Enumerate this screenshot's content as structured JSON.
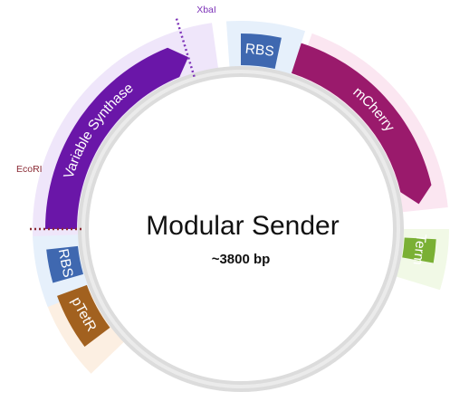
{
  "plasmid": {
    "name": "Modular Sender",
    "size": "~3800 bp"
  },
  "colors": {
    "backbone": "#dcdcdc",
    "backbone_inner": "#ebebeb"
  },
  "features": [
    {
      "id": "variable-synthase",
      "label": "Variable Synthase",
      "color": "#6a16a8",
      "halo": "#efe6fa"
    },
    {
      "id": "rbs-top",
      "label": "RBS",
      "color": "#3f68b0",
      "halo": "#e6f0fb"
    },
    {
      "id": "mcherry",
      "label": "mCherry",
      "color": "#9a1a6c",
      "halo": "#fbe6f1"
    },
    {
      "id": "term",
      "label": "Term",
      "color": "#7ab034",
      "halo": "#f1f9e6"
    },
    {
      "id": "ptetr",
      "label": "pTetR",
      "color": "#a2611f",
      "halo": "#fcefe2"
    },
    {
      "id": "rbs-left",
      "label": "RBS",
      "color": "#3f68b0",
      "halo": "#e6f0fb"
    }
  ],
  "sites": [
    {
      "id": "xbai",
      "label": "XbaI",
      "color": "#7d33b8"
    },
    {
      "id": "ecori",
      "label": "EcoRI",
      "color": "#8a2a34"
    }
  ]
}
